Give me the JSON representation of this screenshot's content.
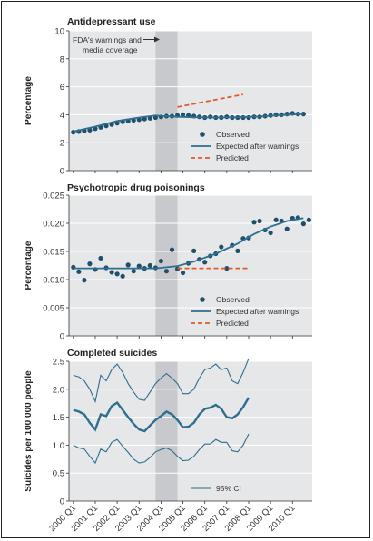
{
  "colors": {
    "panel_bg": "#e6e7e8",
    "shade": "#c8c9cc",
    "observed": "#1f4f6b",
    "expected": "#2e6e8e",
    "predicted": "#e05a2b",
    "ci": "#2e6e8e",
    "gridline": "#ffffff"
  },
  "chart_data": [
    {
      "type": "scatter",
      "title": "Antidepressant use",
      "ylabel": "Percentage",
      "ylim": [
        0,
        10
      ],
      "yticks": [
        "0",
        "2",
        "4",
        "6",
        "8",
        "10"
      ],
      "ytick_values": [
        0,
        2,
        4,
        6,
        8,
        10
      ],
      "shaded_period": [
        2003.75,
        2004.75
      ],
      "annotation": {
        "text_line1": "FDA's warnings and",
        "text_line2": "media coverage",
        "arrow": "right"
      },
      "legend": {
        "position": "bottom-right",
        "entries": [
          "Observed",
          "Expected after warnings",
          "Predicted"
        ]
      },
      "x_start": 2000.0,
      "x_step": 0.25,
      "series": [
        {
          "name": "Observed",
          "kind": "points",
          "values": [
            2.75,
            2.8,
            2.85,
            2.9,
            3.0,
            3.1,
            3.2,
            3.3,
            3.4,
            3.5,
            3.55,
            3.6,
            3.65,
            3.7,
            3.75,
            3.8,
            3.85,
            3.9,
            3.9,
            3.95,
            4.0,
            3.95,
            3.9,
            3.85,
            3.8,
            3.85,
            3.8,
            3.8,
            3.85,
            3.8,
            3.8,
            3.8,
            3.8,
            3.85,
            3.85,
            3.9,
            3.95,
            4.0,
            4.0,
            4.05,
            4.1,
            4.05,
            4.05
          ]
        },
        {
          "name": "Expected after warnings",
          "kind": "line",
          "x": [
            2000.0,
            2001.0,
            2002.0,
            2003.0,
            2003.75,
            2004.75,
            2005.5,
            2006.5,
            2007.5,
            2008.5,
            2009.5,
            2010.5
          ],
          "y": [
            2.8,
            3.15,
            3.55,
            3.8,
            3.95,
            3.85,
            3.82,
            3.8,
            3.82,
            3.87,
            3.97,
            4.05
          ]
        },
        {
          "name": "Predicted",
          "kind": "dashed",
          "x": [
            2004.75,
            2007.75
          ],
          "y": [
            4.55,
            5.45
          ]
        }
      ]
    },
    {
      "type": "scatter",
      "title": "Psychotropic drug poisonings",
      "ylabel": "Percentage",
      "ylim": [
        0,
        0.025
      ],
      "yticks": [
        "0",
        "0.005",
        "0.010",
        "0.015",
        "0.020",
        "0.025"
      ],
      "ytick_values": [
        0,
        0.005,
        0.01,
        0.015,
        0.02,
        0.025
      ],
      "shaded_period": [
        2003.75,
        2004.75
      ],
      "legend": {
        "position": "bottom-right",
        "entries": [
          "Observed",
          "Expected after warnings",
          "Predicted"
        ]
      },
      "x_start": 2000.0,
      "x_step": 0.25,
      "series": [
        {
          "name": "Observed",
          "kind": "points",
          "values": [
            0.0122,
            0.0114,
            0.0099,
            0.0128,
            0.0118,
            0.0138,
            0.0121,
            0.0113,
            0.011,
            0.0106,
            0.0126,
            0.0115,
            0.0124,
            0.012,
            0.0125,
            0.0121,
            0.0133,
            0.0115,
            0.0153,
            0.0119,
            0.0112,
            0.0129,
            0.0151,
            0.0136,
            0.0131,
            0.0142,
            0.0146,
            0.0158,
            0.012,
            0.0161,
            0.0151,
            0.0173,
            0.0174,
            0.0202,
            0.0204,
            0.0188,
            0.0183,
            0.0206,
            0.0204,
            0.019,
            0.0209,
            0.021,
            0.0199,
            0.0206
          ]
        },
        {
          "name": "Expected after warnings",
          "kind": "line",
          "x": [
            2000.0,
            2003.75,
            2004.75,
            2005.5,
            2006.5,
            2007.5,
            2008.25,
            2009.0,
            2009.75,
            2010.5
          ],
          "y": [
            0.012,
            0.012,
            0.0124,
            0.0132,
            0.0146,
            0.0164,
            0.0181,
            0.0194,
            0.0204,
            0.0209
          ]
        },
        {
          "name": "Predicted",
          "kind": "dashed",
          "x": [
            2004.75,
            2008.0
          ],
          "y": [
            0.012,
            0.012
          ]
        }
      ]
    },
    {
      "type": "line",
      "title": "Completed suicides",
      "ylabel": "Suicides per 100 000 people",
      "ylim": [
        0,
        2.5
      ],
      "yticks": [
        "0",
        "0.5",
        "1.0",
        "1.5",
        "2.0",
        "2.5"
      ],
      "ytick_values": [
        0,
        0.5,
        1.0,
        1.5,
        2.0,
        2.5
      ],
      "shaded_period": [
        2003.75,
        2004.75
      ],
      "legend": {
        "position": "bottom-right",
        "entries": [
          "95% CI"
        ]
      },
      "x_start": 2000.0,
      "x_step": 0.25,
      "series": [
        {
          "name": "",
          "kind": "mean",
          "values": [
            1.63,
            1.6,
            1.55,
            1.4,
            1.28,
            1.55,
            1.52,
            1.7,
            1.76,
            1.63,
            1.5,
            1.38,
            1.28,
            1.25,
            1.35,
            1.45,
            1.52,
            1.6,
            1.55,
            1.45,
            1.32,
            1.33,
            1.4,
            1.55,
            1.65,
            1.67,
            1.72,
            1.65,
            1.5,
            1.48,
            1.55,
            1.68,
            1.85
          ]
        },
        {
          "name": "95% CI",
          "kind": "ci_upper",
          "values": [
            2.25,
            2.22,
            2.15,
            2.0,
            1.78,
            2.25,
            2.15,
            2.35,
            2.45,
            2.3,
            2.1,
            1.95,
            1.82,
            1.8,
            1.95,
            2.1,
            2.2,
            2.28,
            2.2,
            2.1,
            1.92,
            1.92,
            2.0,
            2.2,
            2.35,
            2.38,
            2.45,
            2.35,
            2.38,
            2.15,
            2.1,
            2.3,
            2.55
          ]
        },
        {
          "name": "",
          "kind": "ci_lower",
          "values": [
            1.0,
            0.95,
            0.93,
            0.8,
            0.68,
            0.93,
            0.88,
            1.05,
            1.1,
            0.98,
            0.87,
            0.75,
            0.68,
            0.7,
            0.78,
            0.88,
            0.92,
            0.95,
            0.9,
            0.8,
            0.72,
            0.73,
            0.8,
            0.92,
            1.02,
            1.02,
            1.1,
            1.05,
            1.05,
            0.9,
            0.88,
            1.0,
            1.2
          ]
        }
      ]
    }
  ],
  "xaxis": {
    "tick_labels": [
      "2000 Q1",
      "2001 Q1",
      "2002 Q1",
      "2003 Q1",
      "2004 Q1",
      "2005 Q1",
      "2006 Q1",
      "2007 Q1",
      "2008 Q1",
      "2009 Q1",
      "2010 Q1"
    ],
    "tick_values": [
      2000,
      2001,
      2002,
      2003,
      2004,
      2005,
      2006,
      2007,
      2008,
      2009,
      2010
    ],
    "range": [
      1999.8,
      2010.9
    ]
  }
}
